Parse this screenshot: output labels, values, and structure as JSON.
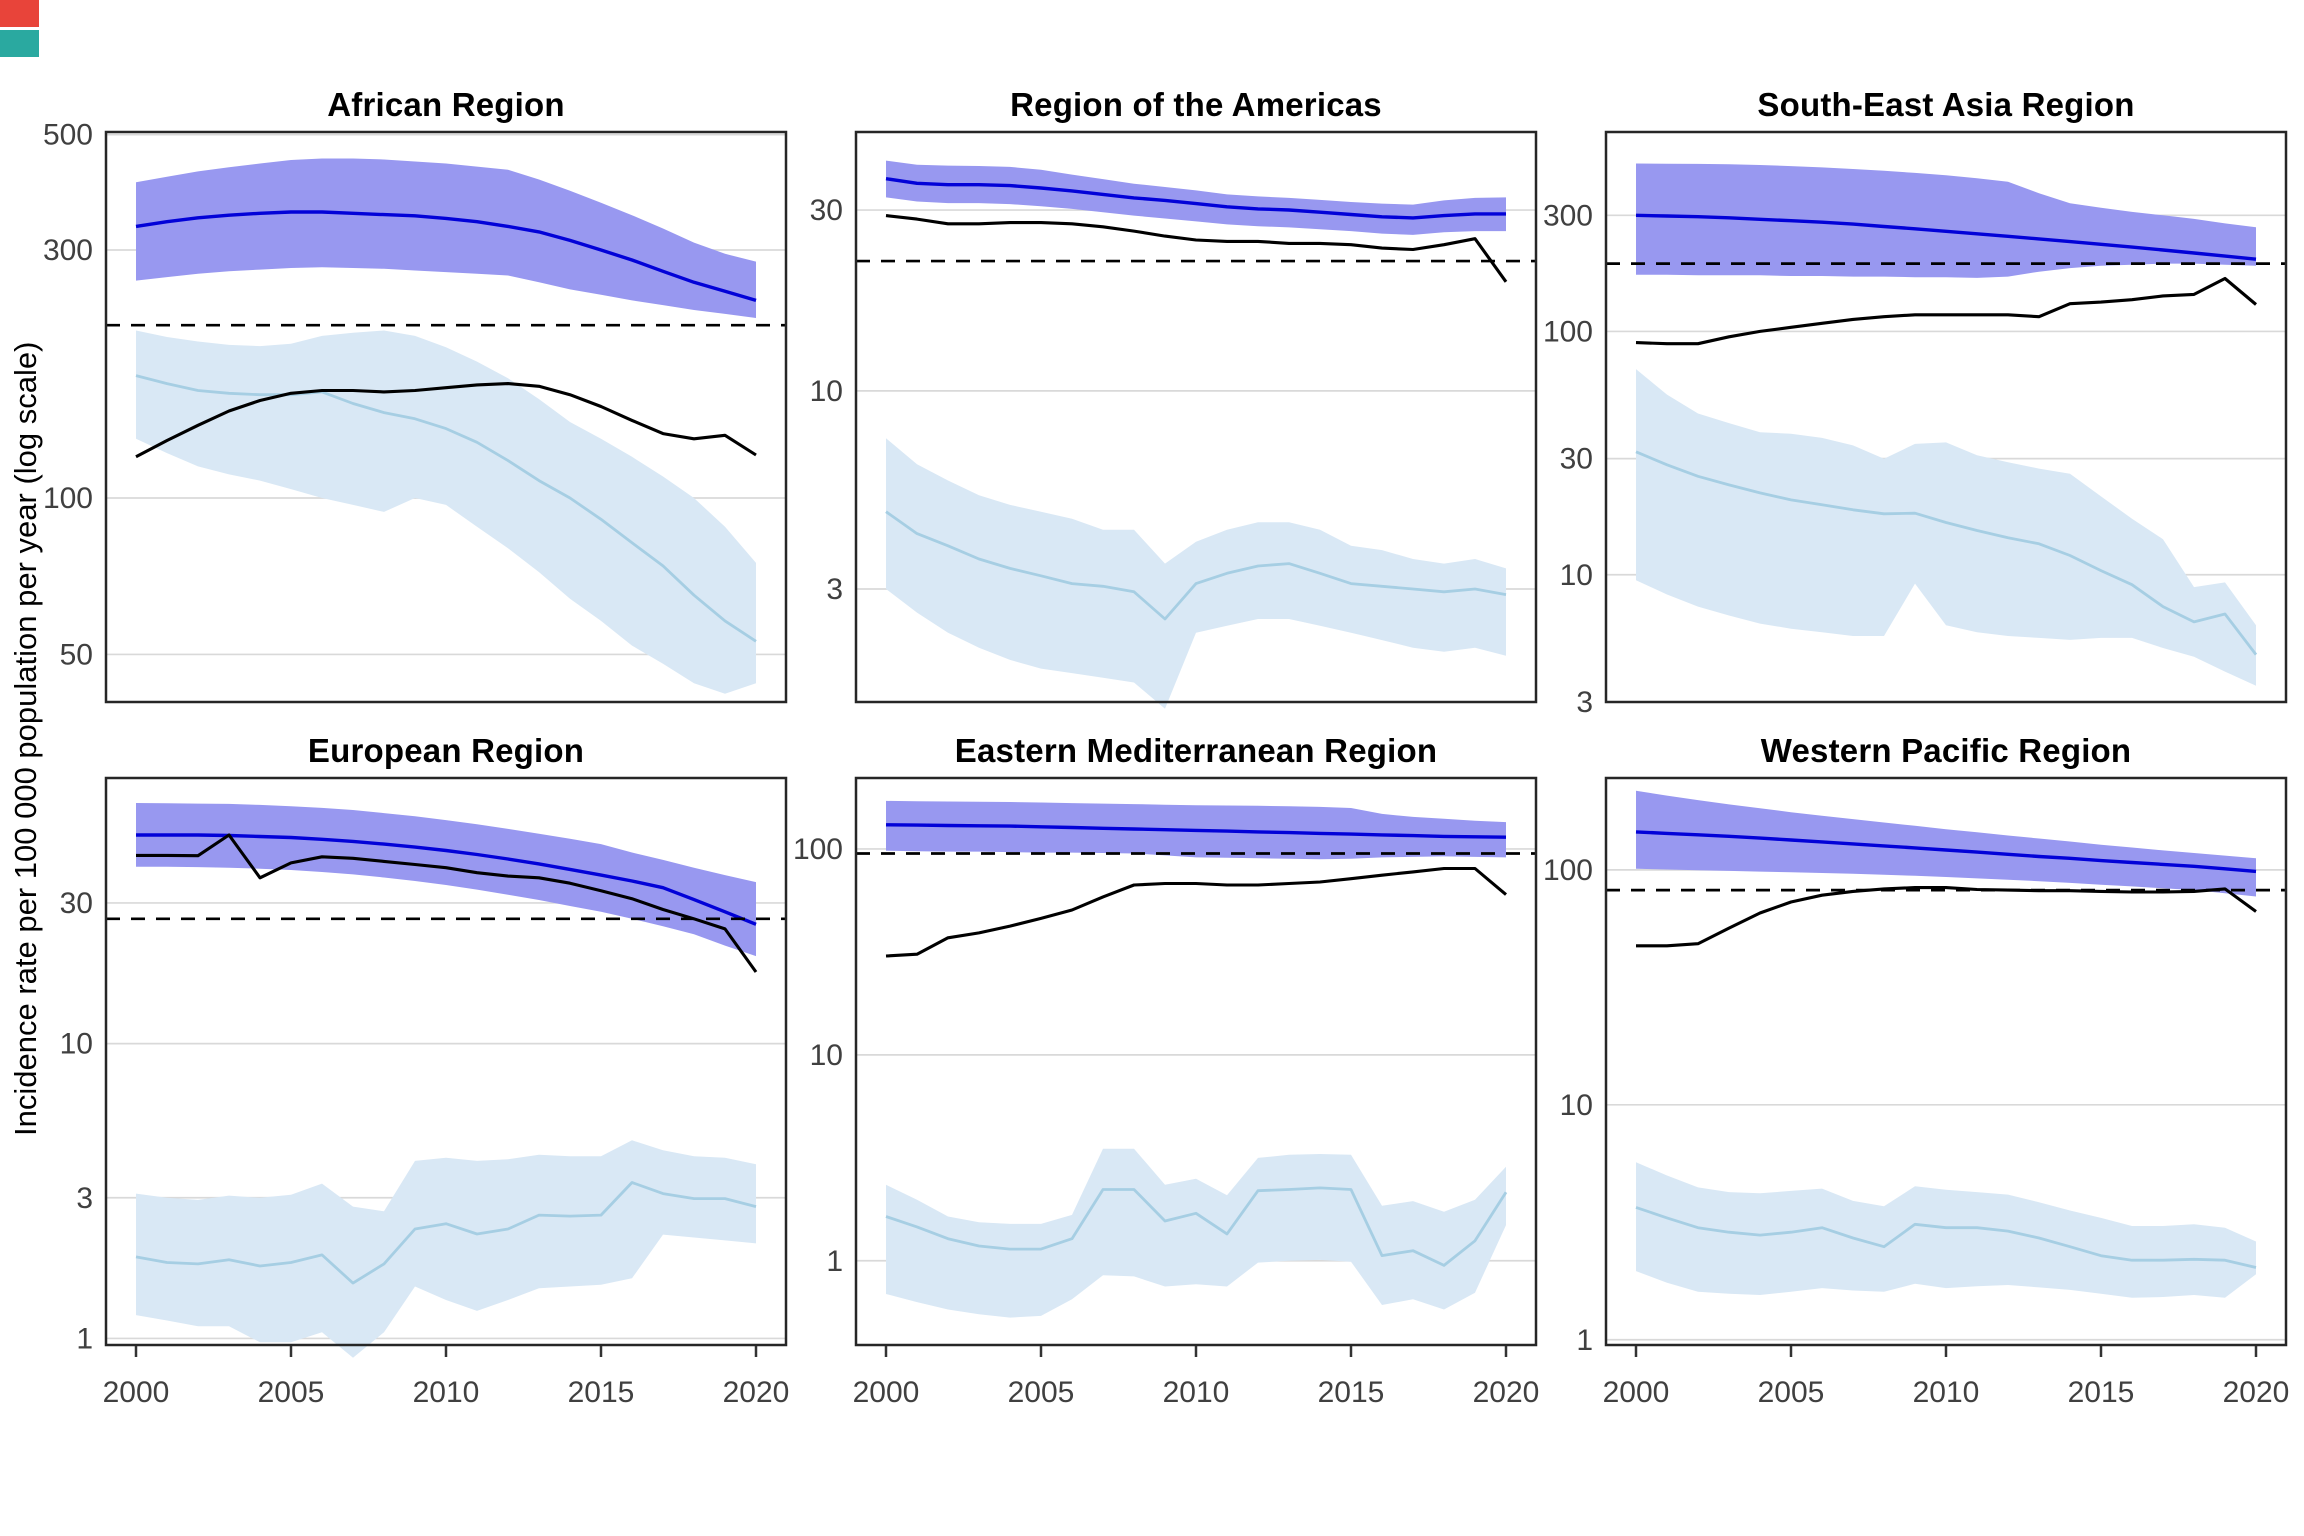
{
  "ylabel": "Incidence rate per 100 000 population per year (log scale)",
  "colors": {
    "blue_line": "#0202d8",
    "blue_band": "#9898f0",
    "lightblue_line": "#a6cee3",
    "lightblue_band": "#d9e8f5",
    "black_line": "#000000",
    "dashed_line": "#000000",
    "grid": "#d9d9d9",
    "panel_border": "#262626",
    "tick_text": "#404040",
    "corner_mark_red": "#e8443a",
    "corner_mark_teal": "#2aa9a0"
  },
  "chart_data": {
    "type": "line",
    "x_ticks": [
      2000,
      2005,
      2010,
      2015,
      2020
    ],
    "years": [
      2000,
      2001,
      2002,
      2003,
      2004,
      2005,
      2006,
      2007,
      2008,
      2009,
      2010,
      2011,
      2012,
      2013,
      2014,
      2015,
      2016,
      2017,
      2018,
      2019,
      2020
    ],
    "legend": "none",
    "grid": "major-horizontal",
    "panels": [
      {
        "title": "African Region",
        "ylim": [
          40.5,
          506
        ],
        "yticks": [
          500,
          300,
          100,
          50
        ],
        "dashed": 215,
        "blue": [
          333,
          340,
          346,
          350,
          353,
          355,
          355,
          353,
          351,
          349,
          345,
          340,
          333,
          325,
          313,
          300,
          287,
          273,
          260,
          250,
          240
        ],
        "blue_hi": [
          405,
          415,
          425,
          433,
          440,
          447,
          450,
          450,
          448,
          444,
          440,
          434,
          428,
          410,
          390,
          370,
          350,
          330,
          310,
          295,
          285
        ],
        "blue_lo": [
          262,
          266,
          270,
          273,
          275,
          277,
          278,
          277,
          276,
          274,
          272,
          270,
          268,
          260,
          252,
          246,
          240,
          235,
          230,
          226,
          222
        ],
        "lightblue": [
          172,
          166,
          161,
          159,
          158,
          158,
          160,
          152,
          146,
          142,
          136,
          128,
          118,
          108,
          100,
          91,
          82,
          74,
          65,
          58,
          53
        ],
        "lightblue_hi": [
          210,
          204,
          200,
          197,
          196,
          198,
          205,
          208,
          210,
          205,
          195,
          183,
          170,
          155,
          140,
          130,
          120,
          110,
          100,
          88,
          75
        ],
        "lightblue_lo": [
          130,
          122,
          115,
          111,
          108,
          104,
          100,
          97,
          94,
          100,
          97,
          88,
          80,
          72,
          64,
          58,
          52,
          48,
          44,
          42,
          44
        ],
        "black": [
          120,
          129,
          138,
          147,
          154,
          159,
          161,
          161,
          160,
          161,
          163,
          165,
          166,
          164,
          158,
          150,
          141,
          133,
          130,
          132,
          121
        ]
      },
      {
        "title": "Region of the Americas",
        "ylim": [
          1.51,
          48.2
        ],
        "yticks": [
          30,
          10,
          3
        ],
        "dashed": 22,
        "blue": [
          36.3,
          35.3,
          35,
          35,
          34.8,
          34.3,
          33.7,
          33,
          32.3,
          31.8,
          31.2,
          30.6,
          30.2,
          30,
          29.6,
          29.2,
          28.8,
          28.6,
          29,
          29.3,
          29.3
        ],
        "blue_hi": [
          40.5,
          39.5,
          39.3,
          39.2,
          39,
          38.3,
          37.2,
          36.2,
          35.2,
          34.5,
          33.8,
          33,
          32.6,
          32.3,
          31.9,
          31.5,
          31.2,
          31,
          31.8,
          32.3,
          32.4
        ],
        "blue_lo": [
          32.4,
          31.6,
          31.3,
          31.3,
          31.1,
          30.7,
          30.2,
          29.6,
          29,
          28.5,
          28,
          27.5,
          27.2,
          27,
          26.7,
          26.4,
          26,
          25.8,
          26.2,
          26.4,
          26.4
        ],
        "lightblue": [
          4.8,
          4.2,
          3.9,
          3.6,
          3.4,
          3.25,
          3.1,
          3.05,
          2.95,
          2.5,
          3.1,
          3.3,
          3.45,
          3.5,
          3.3,
          3.1,
          3.05,
          3,
          2.95,
          3,
          2.9
        ],
        "lightblue_hi": [
          7.5,
          6.4,
          5.8,
          5.3,
          5,
          4.8,
          4.6,
          4.3,
          4.3,
          3.5,
          4,
          4.3,
          4.5,
          4.5,
          4.3,
          3.9,
          3.8,
          3.6,
          3.5,
          3.6,
          3.4
        ],
        "lightblue_lo": [
          3,
          2.6,
          2.3,
          2.1,
          1.95,
          1.85,
          1.8,
          1.75,
          1.7,
          1.45,
          2.3,
          2.4,
          2.5,
          2.5,
          2.4,
          2.3,
          2.2,
          2.1,
          2.05,
          2.1,
          2
        ],
        "black": [
          29,
          28.4,
          27.6,
          27.6,
          27.8,
          27.8,
          27.6,
          27.1,
          26.4,
          25.6,
          25,
          24.8,
          24.8,
          24.5,
          24.5,
          24.3,
          23.8,
          23.6,
          24.3,
          25.2,
          19.4
        ]
      },
      {
        "title": "South-East Asia Region",
        "ylim": [
          3.0,
          660
        ],
        "yticks": [
          300,
          100,
          30,
          10,
          3
        ],
        "dashed": 190,
        "blue": [
          300,
          298,
          296,
          293,
          289,
          285,
          281,
          276,
          270,
          264,
          258,
          252,
          246,
          240,
          234,
          228,
          222,
          216,
          210,
          204,
          198
        ],
        "blue_hi": [
          490,
          489,
          488,
          486,
          483,
          478,
          472,
          465,
          457,
          448,
          438,
          426,
          412,
          370,
          336,
          322,
          310,
          300,
          290,
          278,
          268
        ],
        "blue_lo": [
          171,
          171,
          170,
          170,
          170,
          169,
          169,
          168,
          168,
          167,
          167,
          166,
          168,
          176,
          182,
          186,
          188,
          190,
          190,
          188,
          186
        ],
        "lightblue": [
          32,
          28.3,
          25.4,
          23.4,
          21.7,
          20.3,
          19.4,
          18.5,
          17.8,
          17.9,
          16.4,
          15.2,
          14.2,
          13.4,
          12,
          10.4,
          9.1,
          7.4,
          6.4,
          6.9,
          4.7
        ],
        "lightblue_hi": [
          70,
          55,
          46,
          42,
          38.5,
          38,
          36.5,
          34,
          30,
          34.5,
          35,
          31,
          29,
          27.3,
          26,
          21,
          17,
          14,
          8.9,
          9.3,
          6.2
        ],
        "lightblue_lo": [
          9.5,
          8.3,
          7.4,
          6.8,
          6.3,
          6,
          5.8,
          5.6,
          5.6,
          9.2,
          6.2,
          5.8,
          5.6,
          5.5,
          5.4,
          5.5,
          5.5,
          5,
          4.6,
          4,
          3.5
        ],
        "black": [
          90,
          89,
          89,
          95,
          100,
          104,
          108,
          112,
          115,
          117,
          117,
          117,
          117,
          115,
          130,
          132,
          135,
          140,
          142,
          165,
          129
        ]
      },
      {
        "title": "European Region",
        "ylim": [
          0.95,
          79.6
        ],
        "yticks": [
          30,
          10,
          3,
          1
        ],
        "dashed": 26.5,
        "blue": [
          51,
          51,
          51,
          50.8,
          50.4,
          50,
          49.3,
          48.5,
          47.5,
          46.4,
          45.2,
          43.8,
          42.3,
          40.7,
          39,
          37.3,
          35.6,
          33.8,
          30.8,
          28,
          25.4
        ],
        "blue_hi": [
          65.5,
          65.4,
          65.2,
          65,
          64.5,
          63.8,
          63,
          62,
          60.5,
          59,
          57.3,
          55.5,
          53.5,
          51.5,
          49.5,
          47.5,
          44.5,
          42,
          39.5,
          37.3,
          35.3
        ],
        "blue_lo": [
          39.8,
          39.8,
          39.7,
          39.5,
          39.2,
          38.8,
          38.2,
          37.5,
          36.6,
          35.6,
          34.5,
          33.3,
          32,
          30.7,
          29.3,
          28,
          26.5,
          25,
          23.5,
          21.5,
          19.8
        ],
        "lightblue": [
          1.89,
          1.81,
          1.79,
          1.85,
          1.76,
          1.81,
          1.92,
          1.54,
          1.79,
          2.35,
          2.45,
          2.26,
          2.35,
          2.62,
          2.6,
          2.62,
          3.38,
          3.1,
          2.98,
          2.98,
          2.8
        ],
        "lightblue_hi": [
          3.1,
          3,
          2.95,
          3.05,
          3,
          3.07,
          3.35,
          2.8,
          2.7,
          4,
          4.1,
          4,
          4.05,
          4.2,
          4.15,
          4.15,
          4.7,
          4.35,
          4.15,
          4.1,
          3.9
        ],
        "lightblue_lo": [
          1.2,
          1.15,
          1.1,
          1.1,
          0.97,
          0.97,
          1.05,
          0.86,
          1.05,
          1.5,
          1.35,
          1.24,
          1.35,
          1.48,
          1.5,
          1.52,
          1.6,
          2.25,
          2.2,
          2.15,
          2.1
        ],
        "black": [
          43.5,
          43.5,
          43.4,
          51,
          36.5,
          41,
          43,
          42.5,
          41.5,
          40.5,
          39.5,
          38,
          37,
          36.5,
          35,
          33,
          31,
          28.5,
          26.5,
          24.5,
          17.5
        ]
      },
      {
        "title": "Eastern Mediterranean Region",
        "ylim": [
          0.39,
          221
        ],
        "yticks": [
          100,
          10,
          1
        ],
        "dashed": 95,
        "blue": [
          131,
          130.5,
          130,
          129.5,
          129,
          128,
          127,
          126,
          125,
          124,
          123,
          122,
          121,
          120,
          119,
          118,
          117,
          116,
          115,
          114.5,
          114
        ],
        "blue_hi": [
          171,
          170.5,
          170,
          169.5,
          169,
          168,
          167,
          166,
          165,
          164,
          163,
          162.5,
          162,
          161,
          160,
          158,
          148,
          143,
          140,
          137,
          135
        ],
        "blue_lo": [
          98,
          97.5,
          97,
          97,
          96.5,
          96,
          96,
          95.5,
          95,
          93,
          91,
          90.5,
          90,
          89.5,
          89,
          89.5,
          91,
          91.5,
          92,
          91.5,
          91
        ],
        "lightblue": [
          1.64,
          1.46,
          1.28,
          1.18,
          1.14,
          1.14,
          1.28,
          2.22,
          2.22,
          1.56,
          1.7,
          1.35,
          2.19,
          2.22,
          2.26,
          2.22,
          1.06,
          1.12,
          0.95,
          1.25,
          2.15
        ],
        "lightblue_hi": [
          2.34,
          1.98,
          1.64,
          1.54,
          1.51,
          1.51,
          1.67,
          3.5,
          3.5,
          2.34,
          2.5,
          2.08,
          3.16,
          3.27,
          3.3,
          3.27,
          1.85,
          1.95,
          1.73,
          1.98,
          2.86
        ],
        "lightblue_lo": [
          0.69,
          0.63,
          0.58,
          0.55,
          0.53,
          0.54,
          0.65,
          0.85,
          0.84,
          0.75,
          0.77,
          0.75,
          0.98,
          1,
          1.01,
          0.99,
          0.61,
          0.65,
          0.58,
          0.7,
          1.49
        ],
        "black": [
          30.2,
          30.8,
          37,
          39.1,
          42.2,
          46,
          50.5,
          58.5,
          66.8,
          67.9,
          67.9,
          66.8,
          66.8,
          67.9,
          69.1,
          71.7,
          74.5,
          77.3,
          80.3,
          80.3,
          60
        ]
      },
      {
        "title": "Western Pacific Region",
        "ylim": [
          0.95,
          246
        ],
        "yticks": [
          100,
          10,
          1
        ],
        "dashed": 82,
        "blue": [
          145,
          143,
          141,
          139,
          136.5,
          134,
          131.5,
          129,
          126.5,
          124,
          121.5,
          119,
          116.5,
          114,
          112,
          109.5,
          107.5,
          105.5,
          103.5,
          101,
          98.5
        ],
        "blue_hi": [
          217,
          207,
          198,
          190,
          183,
          176,
          170,
          164.5,
          159,
          154,
          149,
          144.5,
          140,
          136,
          132,
          128,
          124.5,
          121,
          118,
          115,
          112
        ],
        "blue_lo": [
          101,
          100.3,
          99.7,
          99,
          98.3,
          97.7,
          97,
          96.2,
          95.3,
          94.3,
          93.2,
          92,
          90.8,
          89.5,
          88,
          86.5,
          85,
          83.5,
          82,
          79.5,
          77
        ],
        "lightblue": [
          3.66,
          3.3,
          3,
          2.87,
          2.79,
          2.87,
          3,
          2.71,
          2.49,
          3.1,
          3,
          3,
          2.9,
          2.71,
          2.49,
          2.28,
          2.18,
          2.18,
          2.2,
          2.18,
          2.03
        ],
        "lightblue_hi": [
          5.7,
          5,
          4.45,
          4.25,
          4.2,
          4.3,
          4.4,
          3.9,
          3.7,
          4.5,
          4.35,
          4.25,
          4.15,
          3.85,
          3.55,
          3.3,
          3.05,
          3.05,
          3.1,
          3,
          2.62
        ],
        "lightblue_lo": [
          1.96,
          1.75,
          1.6,
          1.57,
          1.55,
          1.6,
          1.66,
          1.62,
          1.6,
          1.73,
          1.66,
          1.69,
          1.71,
          1.67,
          1.63,
          1.57,
          1.51,
          1.52,
          1.55,
          1.51,
          1.9
        ],
        "black": [
          47.5,
          47.5,
          48.5,
          56.5,
          65.5,
          73,
          78,
          81,
          83,
          84,
          84,
          82.5,
          82,
          81.5,
          81.5,
          81,
          80.5,
          80.5,
          81,
          83,
          66.5
        ]
      }
    ]
  }
}
